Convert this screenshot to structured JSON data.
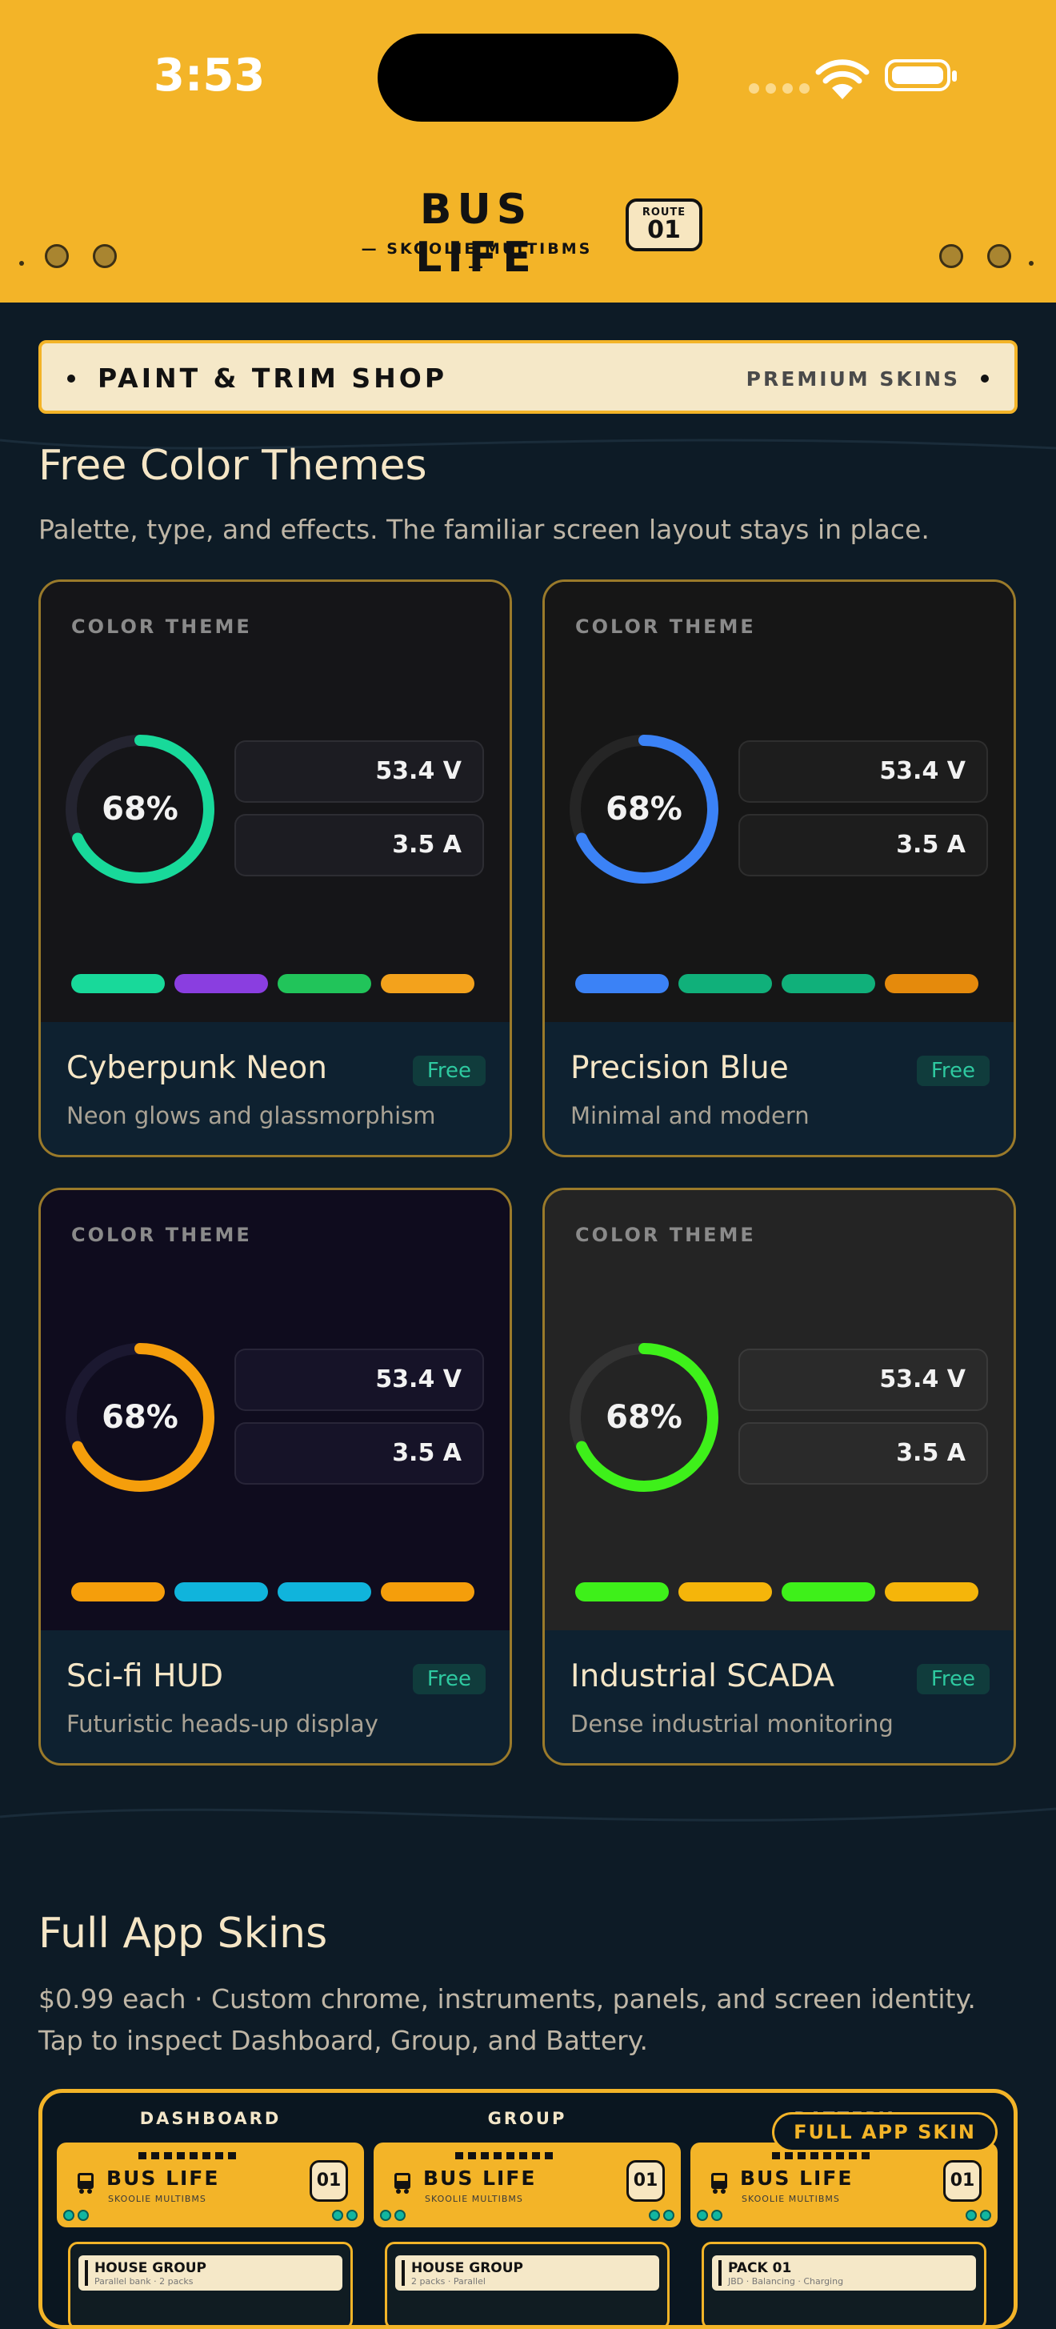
{
  "status_bar": {
    "time": "3:53"
  },
  "header": {
    "title": "BUS LIFE",
    "subtitle": "— SKOOLIE MULTIBMS —",
    "route_label": "ROUTE",
    "route_number": "01"
  },
  "shop_banner": {
    "title": "PAINT & TRIM SHOP",
    "right_label": "PREMIUM SKINS"
  },
  "free_themes": {
    "title": "Free Color Themes",
    "description": "Palette, type, and effects. The familiar screen layout stays in place.",
    "cards": [
      {
        "preview_label": "COLOR THEME",
        "gauge_text": "68%",
        "gauge_value": 0.68,
        "voltage": "53.4 V",
        "current": "3.5 A",
        "name": "Cyberpunk Neon",
        "description": "Neon glows and glassmorphism",
        "badge": "Free",
        "colors": {
          "bg": "#151518",
          "track": "#242430",
          "ring": "#18d99a",
          "box": "#1c1c22",
          "swatches": [
            "#18d99a",
            "#8a3ee0",
            "#21c45a",
            "#f3a21c"
          ]
        }
      },
      {
        "preview_label": "COLOR THEME",
        "gauge_text": "68%",
        "gauge_value": 0.68,
        "voltage": "53.4 V",
        "current": "3.5 A",
        "name": "Precision Blue",
        "description": "Minimal and modern",
        "badge": "Free",
        "colors": {
          "bg": "#161616",
          "track": "#252525",
          "ring": "#3b82f6",
          "box": "#1d1d1d",
          "swatches": [
            "#3b82f6",
            "#10b07a",
            "#10b07a",
            "#e58a0c"
          ]
        }
      },
      {
        "preview_label": "COLOR THEME",
        "gauge_text": "68%",
        "gauge_value": 0.68,
        "voltage": "53.4 V",
        "current": "3.5 A",
        "name": "Sci-fi HUD",
        "description": "Futuristic heads-up display",
        "badge": "Free",
        "colors": {
          "bg": "#0f0c1e",
          "track": "#1b1830",
          "ring": "#f59e0b",
          "box": "#161328",
          "swatches": [
            "#f59e0b",
            "#10b4dc",
            "#10b4dc",
            "#f59e0b"
          ]
        }
      },
      {
        "preview_label": "COLOR THEME",
        "gauge_text": "68%",
        "gauge_value": 0.68,
        "voltage": "53.4 V",
        "current": "3.5 A",
        "name": "Industrial SCADA",
        "description": "Dense industrial monitoring",
        "badge": "Free",
        "colors": {
          "bg": "#242424",
          "track": "#333333",
          "ring": "#3ef01a",
          "box": "#2a2a2a",
          "swatches": [
            "#3ef01a",
            "#f5b50a",
            "#3ef01a",
            "#f5b50a"
          ]
        }
      }
    ]
  },
  "full_skins": {
    "title": "Full App Skins",
    "description": "$0.99 each · Custom chrome, instruments, panels, and screen identity. Tap to inspect Dashboard, Group, and Battery.",
    "badge": "FULL APP SKIN",
    "columns": [
      {
        "label": "DASHBOARD",
        "title": "BUS LIFE",
        "subtitle": "SKOOLIE MULTIBMS",
        "route": "01",
        "card_title": "HOUSE GROUP",
        "card_sub": "Parallel bank · 2 packs"
      },
      {
        "label": "GROUP",
        "title": "BUS LIFE",
        "subtitle": "SKOOLIE MULTIBMS",
        "route": "01",
        "card_title": "HOUSE GROUP",
        "card_sub": "2 packs · Parallel"
      },
      {
        "label": "BATTERY",
        "title": "BUS LIFE",
        "subtitle": "SKOOLIE MULTIBMS",
        "route": "01",
        "card_title": "PACK 01",
        "card_sub": "JBD · Balancing · Charging"
      }
    ]
  }
}
